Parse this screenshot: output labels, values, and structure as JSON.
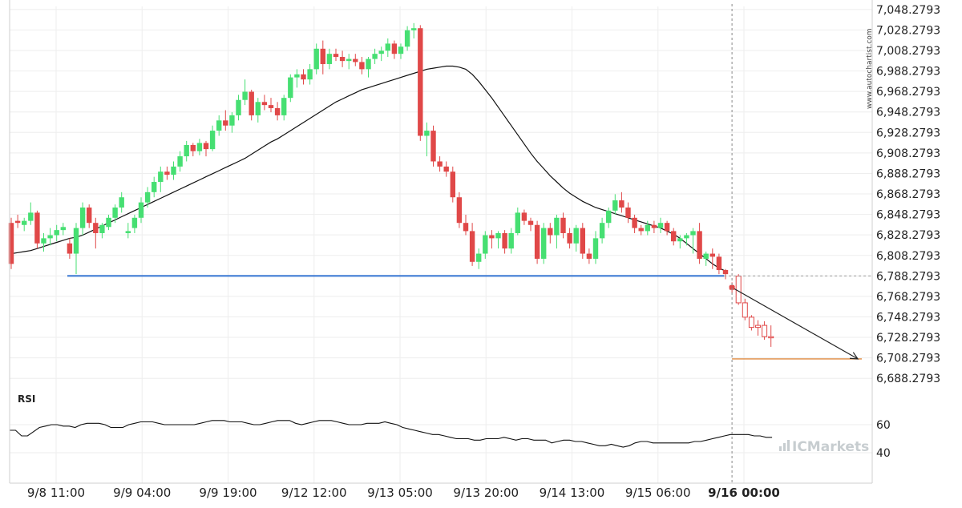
{
  "chart_data": [
    {
      "type": "candlestick",
      "colors": {
        "up": "#46df72",
        "down": "#e04848",
        "projected": "#e04848",
        "ma": "#111111",
        "support": "#3f7bd4",
        "target": "#e08a40",
        "grid": "#eeeeee"
      },
      "y_ticks": [
        "7,048.2793",
        "7,028.2793",
        "7,008.2793",
        "6,988.2793",
        "6,968.2793",
        "6,948.2793",
        "6,928.2793",
        "6,908.2793",
        "6,888.2793",
        "6,868.2793",
        "6,848.2793",
        "6,828.2793",
        "6,808.2793",
        "6,788.2793",
        "6,768.2793",
        "6,748.2793",
        "6,728.2793",
        "6,708.2793",
        "6,688.2793"
      ],
      "ylim": [
        6678.28,
        7051.28
      ],
      "x_ticks": [
        "9/8 11:00",
        "9/9 04:00",
        "9/9 19:00",
        "9/12 12:00",
        "9/13 05:00",
        "9/13 20:00",
        "9/14 13:00",
        "9/15 06:00",
        "9/16 00:00"
      ],
      "highlight_tick": "9/16 00:00",
      "candles": [
        [
          6840,
          6845,
          6795,
          6800
        ],
        [
          6842,
          6848,
          6835,
          6840
        ],
        [
          6838,
          6845,
          6832,
          6842
        ],
        [
          6842,
          6860,
          6838,
          6850
        ],
        [
          6850,
          6852,
          6815,
          6820
        ],
        [
          6820,
          6830,
          6812,
          6825
        ],
        [
          6825,
          6835,
          6818,
          6828
        ],
        [
          6828,
          6838,
          6822,
          6833
        ],
        [
          6833,
          6840,
          6828,
          6836
        ],
        [
          6820,
          6825,
          6805,
          6810
        ],
        [
          6810,
          6840,
          6790,
          6835
        ],
        [
          6835,
          6860,
          6828,
          6855
        ],
        [
          6855,
          6858,
          6835,
          6840
        ],
        [
          6840,
          6845,
          6815,
          6830
        ],
        [
          6830,
          6840,
          6825,
          6838
        ],
        [
          6836,
          6848,
          6833,
          6845
        ],
        [
          6845,
          6858,
          6840,
          6855
        ],
        [
          6855,
          6870,
          6850,
          6865
        ],
        [
          6830,
          6840,
          6825,
          6832
        ],
        [
          6835,
          6848,
          6830,
          6845
        ],
        [
          6845,
          6865,
          6840,
          6860
        ],
        [
          6860,
          6875,
          6855,
          6870
        ],
        [
          6870,
          6885,
          6865,
          6880
        ],
        [
          6880,
          6895,
          6870,
          6890
        ],
        [
          6890,
          6895,
          6882,
          6887
        ],
        [
          6887,
          6900,
          6882,
          6895
        ],
        [
          6895,
          6910,
          6890,
          6905
        ],
        [
          6905,
          6920,
          6900,
          6916
        ],
        [
          6916,
          6918,
          6905,
          6910
        ],
        [
          6910,
          6922,
          6906,
          6918
        ],
        [
          6918,
          6920,
          6905,
          6912
        ],
        [
          6912,
          6935,
          6910,
          6930
        ],
        [
          6930,
          6945,
          6925,
          6940
        ],
        [
          6940,
          6950,
          6930,
          6935
        ],
        [
          6935,
          6948,
          6928,
          6945
        ],
        [
          6945,
          6965,
          6940,
          6960
        ],
        [
          6960,
          6980,
          6955,
          6968
        ],
        [
          6968,
          6970,
          6940,
          6945
        ],
        [
          6945,
          6962,
          6938,
          6958
        ],
        [
          6958,
          6965,
          6950,
          6955
        ],
        [
          6955,
          6962,
          6948,
          6952
        ],
        [
          6952,
          6958,
          6940,
          6945
        ],
        [
          6945,
          6965,
          6940,
          6962
        ],
        [
          6962,
          6985,
          6958,
          6982
        ],
        [
          6982,
          6990,
          6972,
          6985
        ],
        [
          6985,
          6990,
          6975,
          6980
        ],
        [
          6980,
          6995,
          6975,
          6990
        ],
        [
          6990,
          7015,
          6985,
          7010
        ],
        [
          7010,
          7018,
          6985,
          6995
        ],
        [
          6995,
          7010,
          6990,
          7005
        ],
        [
          7005,
          7010,
          6998,
          7002
        ],
        [
          7002,
          7008,
          6992,
          6998
        ],
        [
          6998,
          7005,
          6990,
          7000
        ],
        [
          7000,
          7005,
          6993,
          6997
        ],
        [
          6997,
          7002,
          6985,
          6990
        ],
        [
          6990,
          7002,
          6982,
          7000
        ],
        [
          7000,
          7010,
          6995,
          7005
        ],
        [
          7005,
          7012,
          6998,
          7008
        ],
        [
          7008,
          7020,
          7002,
          7015
        ],
        [
          7015,
          7018,
          7000,
          7005
        ],
        [
          7005,
          7015,
          7000,
          7012
        ],
        [
          7012,
          7032,
          7008,
          7028
        ],
        [
          7028,
          7035,
          7020,
          7030
        ],
        [
          7030,
          7033,
          6920,
          6925
        ],
        [
          6925,
          6938,
          6905,
          6930
        ],
        [
          6930,
          6935,
          6895,
          6900
        ],
        [
          6900,
          6905,
          6890,
          6895
        ],
        [
          6895,
          6900,
          6885,
          6890
        ],
        [
          6890,
          6895,
          6860,
          6865
        ],
        [
          6865,
          6870,
          6835,
          6840
        ],
        [
          6840,
          6848,
          6828,
          6832
        ],
        [
          6832,
          6840,
          6798,
          6802
        ],
        [
          6802,
          6815,
          6795,
          6810
        ],
        [
          6810,
          6832,
          6805,
          6828
        ],
        [
          6828,
          6833,
          6815,
          6825
        ],
        [
          6825,
          6832,
          6815,
          6830
        ],
        [
          6830,
          6833,
          6810,
          6815
        ],
        [
          6815,
          6835,
          6810,
          6830
        ],
        [
          6830,
          6855,
          6828,
          6850
        ],
        [
          6850,
          6853,
          6838,
          6842
        ],
        [
          6842,
          6845,
          6832,
          6838
        ],
        [
          6838,
          6842,
          6800,
          6805
        ],
        [
          6805,
          6840,
          6800,
          6835
        ],
        [
          6835,
          6840,
          6820,
          6828
        ],
        [
          6828,
          6848,
          6815,
          6845
        ],
        [
          6845,
          6850,
          6825,
          6830
        ],
        [
          6830,
          6835,
          6815,
          6820
        ],
        [
          6820,
          6838,
          6812,
          6835
        ],
        [
          6835,
          6840,
          6805,
          6810
        ],
        [
          6810,
          6815,
          6800,
          6805
        ],
        [
          6805,
          6832,
          6800,
          6825
        ],
        [
          6825,
          6845,
          6820,
          6840
        ],
        [
          6840,
          6855,
          6835,
          6852
        ],
        [
          6852,
          6868,
          6848,
          6862
        ],
        [
          6862,
          6870,
          6850,
          6855
        ],
        [
          6855,
          6860,
          6840,
          6845
        ],
        [
          6845,
          6848,
          6830,
          6835
        ],
        [
          6835,
          6838,
          6828,
          6832
        ],
        [
          6832,
          6842,
          6828,
          6838
        ],
        [
          6838,
          6842,
          6830,
          6835
        ],
        [
          6835,
          6845,
          6830,
          6840
        ],
        [
          6840,
          6842,
          6828,
          6832
        ],
        [
          6832,
          6835,
          6818,
          6822
        ],
        [
          6822,
          6828,
          6815,
          6825
        ],
        [
          6825,
          6830,
          6818,
          6828
        ],
        [
          6828,
          6835,
          6810,
          6832
        ],
        [
          6832,
          6840,
          6800,
          6805
        ],
        [
          6805,
          6812,
          6798,
          6810
        ],
        [
          6810,
          6815,
          6795,
          6807
        ],
        [
          6807,
          6810,
          6790,
          6794
        ],
        [
          6794,
          6795,
          6785,
          6790
        ]
      ],
      "projected_candles": [
        [
          6778,
          6782,
          6771,
          6776
        ],
        [
          6788,
          6790,
          6760,
          6762
        ],
        [
          6762,
          6766,
          6745,
          6748
        ],
        [
          6748,
          6750,
          6735,
          6738
        ],
        [
          6738,
          6745,
          6730,
          6740
        ],
        [
          6740,
          6744,
          6726,
          6729
        ],
        [
          6729,
          6740,
          6719,
          6728
        ]
      ],
      "ma": [
        6810,
        6811,
        6812,
        6813,
        6815,
        6817,
        6819,
        6821,
        6823,
        6825,
        6826,
        6828,
        6831,
        6834,
        6837,
        6840,
        6843,
        6846,
        6849,
        6852,
        6855,
        6858,
        6861,
        6864,
        6867,
        6870,
        6873,
        6876,
        6879,
        6882,
        6885,
        6888,
        6891,
        6894,
        6897,
        6900,
        6903,
        6907,
        6911,
        6915,
        6919,
        6922,
        6926,
        6930,
        6934,
        6938,
        6942,
        6946,
        6950,
        6954,
        6958,
        6961,
        6964,
        6967,
        6970,
        6972,
        6974,
        6976,
        6978,
        6980,
        6982,
        6984,
        6986,
        6988,
        6990,
        6991,
        6992,
        6993,
        6993,
        6992,
        6990,
        6985,
        6978,
        6970,
        6962,
        6953,
        6944,
        6935,
        6926,
        6917,
        6908,
        6900,
        6893,
        6886,
        6880,
        6874,
        6869,
        6865,
        6861,
        6858,
        6855,
        6853,
        6851,
        6849,
        6847,
        6845,
        6843,
        6841,
        6839,
        6837,
        6835,
        6832,
        6829,
        6825,
        6820,
        6815,
        6810,
        6805,
        6800,
        6796,
        6793
      ],
      "support_level": 6788.2793,
      "target_level": 6707.2793,
      "arrow_from": 6777,
      "arrow_to": 6707.2793,
      "rsi_label": "RSI",
      "rsi_ticks": [
        "60",
        "40"
      ],
      "rsi_ylim": [
        20,
        80
      ],
      "rsi": [
        56,
        56,
        52,
        52,
        55,
        58,
        59,
        60,
        60,
        59,
        59,
        58,
        60,
        61,
        61,
        61,
        60,
        58,
        58,
        58,
        60,
        61,
        62,
        62,
        62,
        61,
        60,
        60,
        60,
        60,
        60,
        60,
        61,
        62,
        63,
        63,
        63,
        62,
        62,
        62,
        61,
        60,
        60,
        61,
        62,
        63,
        63,
        63,
        61,
        60,
        61,
        62,
        63,
        63,
        63,
        62,
        61,
        60,
        60,
        60,
        61,
        61,
        61,
        62,
        61,
        60,
        58,
        57,
        56,
        55,
        54,
        53,
        53,
        52,
        51,
        50,
        50,
        50,
        49,
        49,
        50,
        50,
        50,
        51,
        50,
        49,
        50,
        50,
        49,
        49,
        49,
        47,
        48,
        49,
        49,
        48,
        48,
        47,
        46,
        45,
        45,
        46,
        45,
        44,
        45,
        47,
        48,
        48,
        47,
        47,
        47,
        47,
        47,
        47,
        47,
        48,
        48,
        49,
        50,
        51,
        52,
        53,
        53,
        53,
        53,
        52,
        52,
        51,
        51
      ],
      "watermark_brand": "ICMarkets",
      "side_credit": "www.autochartist.com"
    }
  ]
}
